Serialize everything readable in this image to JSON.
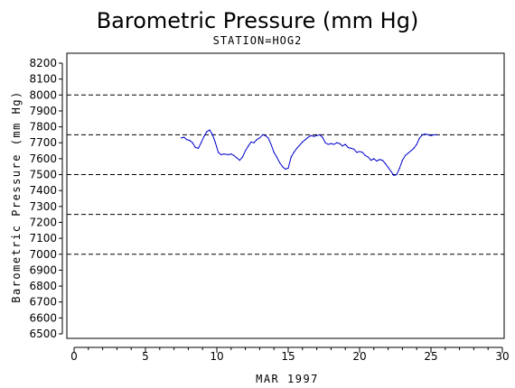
{
  "chart_data": {
    "type": "line",
    "title": "Barometric Pressure (mm Hg)",
    "subtitle": "STATION=HOG2",
    "xlabel": "MAR 1997",
    "ylabel": "Barometric Pressure (mm Hg)",
    "xlim": [
      0,
      30
    ],
    "ylim": [
      6500,
      8200
    ],
    "x_ticks": [
      0,
      5,
      10,
      15,
      20,
      25,
      30
    ],
    "x_minor_step": 1,
    "y_ticks": [
      6500,
      6600,
      6700,
      6800,
      6900,
      7000,
      7100,
      7200,
      7300,
      7400,
      7500,
      7600,
      7700,
      7800,
      7900,
      8000,
      8100,
      8200
    ],
    "reference_lines": [
      7000,
      7250,
      7500,
      7750,
      8000
    ],
    "line_color": "#0000cc",
    "series": [
      {
        "x": [
          7.5,
          7.7,
          7.9,
          8.1,
          8.3,
          8.5,
          8.7,
          8.9,
          9.1,
          9.3,
          9.5,
          9.7,
          9.9,
          10.1,
          10.3,
          10.5,
          10.8,
          11.0,
          11.2,
          11.4,
          11.6,
          11.8,
          12.0,
          12.2,
          12.4,
          12.6,
          12.8,
          13.0,
          13.2,
          13.4,
          13.6,
          13.8,
          14.0,
          14.2,
          14.4,
          14.6,
          14.8,
          15.0,
          15.2,
          15.4,
          15.6,
          15.8,
          16.0,
          16.2,
          16.4,
          16.6,
          16.8,
          17.0,
          17.2,
          17.4,
          17.6,
          17.8,
          18.0,
          18.2,
          18.4,
          18.6,
          18.8,
          19.0,
          19.2,
          19.4,
          19.6,
          19.8,
          20.0,
          20.2,
          20.4,
          20.6,
          20.8,
          21.0,
          21.2,
          21.4,
          21.6,
          21.8,
          22.0,
          22.2,
          22.4,
          22.6,
          22.8,
          23.0,
          23.2,
          23.4,
          23.6,
          23.8,
          24.0,
          24.2,
          24.4,
          24.6,
          24.8,
          25.0,
          25.2,
          25.4
        ],
        "y": [
          7730,
          7735,
          7720,
          7715,
          7700,
          7670,
          7665,
          7700,
          7740,
          7770,
          7780,
          7750,
          7700,
          7640,
          7625,
          7630,
          7625,
          7630,
          7620,
          7605,
          7590,
          7610,
          7650,
          7680,
          7705,
          7700,
          7720,
          7730,
          7750,
          7745,
          7730,
          7690,
          7640,
          7610,
          7575,
          7550,
          7535,
          7540,
          7610,
          7640,
          7665,
          7685,
          7705,
          7720,
          7735,
          7745,
          7740,
          7745,
          7750,
          7735,
          7700,
          7690,
          7695,
          7690,
          7700,
          7695,
          7680,
          7690,
          7670,
          7665,
          7660,
          7640,
          7645,
          7640,
          7620,
          7610,
          7590,
          7600,
          7585,
          7595,
          7590,
          7570,
          7545,
          7520,
          7495,
          7500,
          7540,
          7590,
          7620,
          7635,
          7650,
          7665,
          7690,
          7730,
          7750,
          7755,
          7750,
          7745,
          7750,
          7750
        ]
      }
    ]
  }
}
